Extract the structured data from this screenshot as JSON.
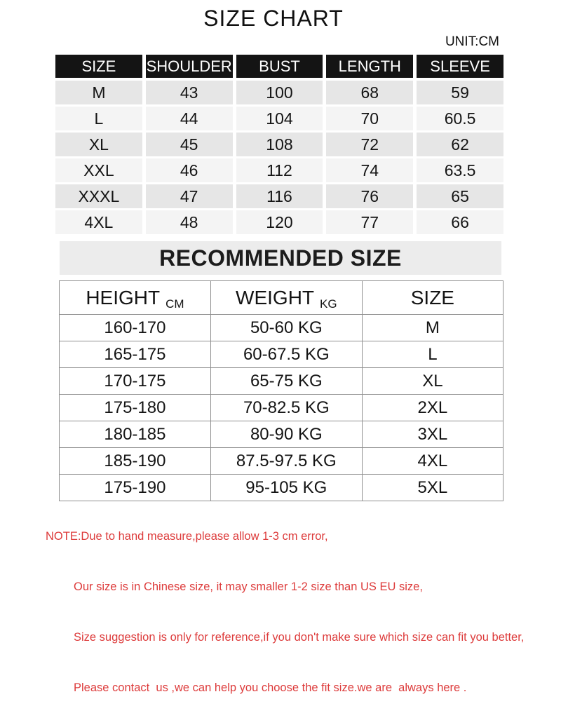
{
  "title": "SIZE CHART",
  "unit_note": "UNIT:CM",
  "size_table": {
    "columns": [
      "SIZE",
      "SHOULDER",
      "BUST",
      "LENGTH",
      "SLEEVE"
    ],
    "rows": [
      [
        "M",
        "43",
        "100",
        "68",
        "59"
      ],
      [
        "L",
        "44",
        "104",
        "70",
        "60.5"
      ],
      [
        "XL",
        "45",
        "108",
        "72",
        "62"
      ],
      [
        "XXL",
        "46",
        "112",
        "74",
        "63.5"
      ],
      [
        "XXXL",
        "47",
        "116",
        "76",
        "65"
      ],
      [
        "4XL",
        "48",
        "120",
        "77",
        "66"
      ]
    ]
  },
  "recommended_table": {
    "heading": "RECOMMENDED SIZE",
    "columns": [
      {
        "label": "HEIGHT",
        "unit": "CM"
      },
      {
        "label": "WEIGHT",
        "unit": "KG"
      },
      {
        "label": "SIZE"
      }
    ],
    "rows": [
      [
        "160-170",
        "50-60 KG",
        "M"
      ],
      [
        "165-175",
        "60-67.5 KG",
        "L"
      ],
      [
        "170-175",
        "65-75 KG",
        "XL"
      ],
      [
        "175-180",
        "70-82.5 KG",
        "2XL"
      ],
      [
        "180-185",
        "80-90 KG",
        "3XL"
      ],
      [
        "185-190",
        "87.5-97.5 KG",
        "4XL"
      ],
      [
        "175-190",
        "95-105 KG",
        "5XL"
      ]
    ]
  },
  "note": {
    "lines": [
      "NOTE:Due to hand measure,please allow 1-3 cm error,",
      "Our size is in Chinese size, it may smaller 1-2 size than US EU size,",
      "Size suggestion is only for reference,if you don't make sure which size can fit you better,",
      "Please contact  us ,we can help you choose the fit size.we are  always here ."
    ]
  },
  "colors": {
    "header_bg": "#141414",
    "row_alt": "#e6e6e6",
    "row_base": "#f4f4f4",
    "band_bg": "#ececec",
    "border": "#909090",
    "note_red": "#dd3b3b"
  }
}
